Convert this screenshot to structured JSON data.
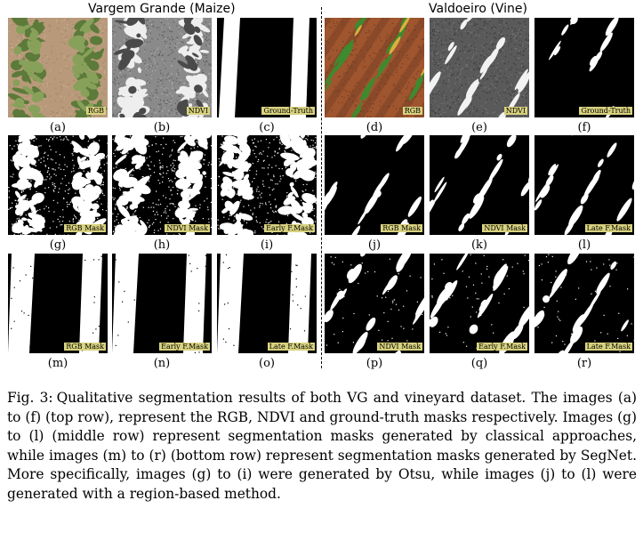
{
  "groups": {
    "left": "Vargem Grande (Maize)",
    "right": "Valdoeiro (Vine)"
  },
  "panels": [
    {
      "id": "a",
      "label": "(a)",
      "tag": "RGB",
      "kind": "rgb-maize"
    },
    {
      "id": "b",
      "label": "(b)",
      "tag": "NDVI",
      "kind": "ndvi-maize"
    },
    {
      "id": "c",
      "label": "(c)",
      "tag": "Ground-Truth",
      "kind": "gt-maize"
    },
    {
      "id": "d",
      "label": "(d)",
      "tag": "RGB",
      "kind": "rgb-vine"
    },
    {
      "id": "e",
      "label": "(e)",
      "tag": "NDVI",
      "kind": "ndvi-vine"
    },
    {
      "id": "f",
      "label": "(f)",
      "tag": "Ground-Truth",
      "kind": "gt-vine"
    },
    {
      "id": "g",
      "label": "(g)",
      "tag": "RGB Mask",
      "kind": "otsu-maize"
    },
    {
      "id": "h",
      "label": "(h)",
      "tag": "NDVI Mask",
      "kind": "otsu-maize"
    },
    {
      "id": "i",
      "label": "(i)",
      "tag": "Early F.Mask",
      "kind": "otsu-maize"
    },
    {
      "id": "j",
      "label": "(j)",
      "tag": "RGB Mask",
      "kind": "region-vine"
    },
    {
      "id": "k",
      "label": "(k)",
      "tag": "NDVI Mask",
      "kind": "region-vine"
    },
    {
      "id": "l",
      "label": "(l)",
      "tag": "Late F.Mask",
      "kind": "region-vine"
    },
    {
      "id": "m",
      "label": "(m)",
      "tag": "RGB Mask",
      "kind": "segnet-maize"
    },
    {
      "id": "n",
      "label": "(n)",
      "tag": "Early F.Mask",
      "kind": "segnet-maize"
    },
    {
      "id": "o",
      "label": "(o)",
      "tag": "Late F.Mask",
      "kind": "segnet-maize"
    },
    {
      "id": "p",
      "label": "(p)",
      "tag": "NDVI Mask",
      "kind": "segnet-vine"
    },
    {
      "id": "q",
      "label": "(q)",
      "tag": "Early F.Mask",
      "kind": "segnet-vine"
    },
    {
      "id": "r",
      "label": "(r)",
      "tag": "Late F.Mask",
      "kind": "segnet-vine"
    }
  ],
  "caption": {
    "lead": "Fig. 3:",
    "text": "Qualitative segmentation results of both VG and vineyard dataset. The images (a) to (f) (top row), represent the RGB, NDVI and ground-truth masks respectively. Images (g) to (l) (middle row) represent segmentation masks generated by classical approaches, while images (m) to (r) (bottom row) represent segmentation masks generated by SegNet. More specifically, images (g) to (i) were generated by Otsu, while images (j) to (l) were generated with a region-based method."
  }
}
